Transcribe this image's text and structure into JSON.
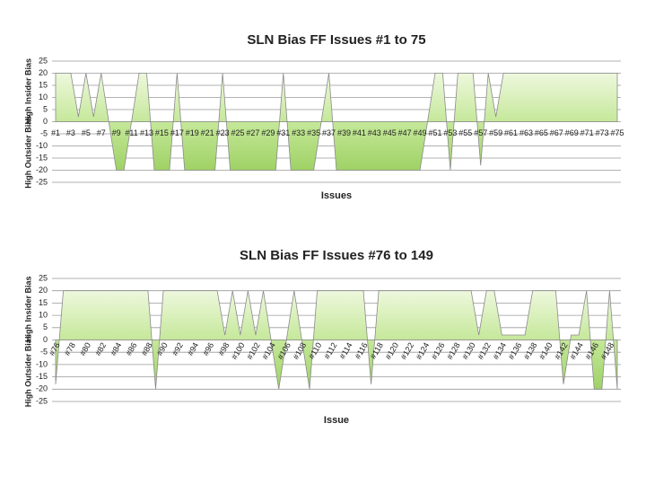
{
  "chart_data": [
    {
      "type": "area",
      "title": "SLN Bias FF Issues #1 to 75",
      "x_label": "Issues",
      "y_label_top": "High Insider Bias",
      "y_label_bottom": "High Outsider Bias",
      "categories": [
        "#1",
        null,
        "#3",
        null,
        "#5",
        null,
        "#7",
        null,
        "#9",
        null,
        "#11",
        null,
        "#13",
        null,
        "#15",
        null,
        "#17",
        null,
        "#19",
        null,
        "#21",
        null,
        "#23",
        null,
        "#25",
        null,
        "#27",
        null,
        "#29",
        null,
        "#31",
        null,
        "#33",
        null,
        "#35",
        null,
        "#37",
        null,
        "#39",
        null,
        "#41",
        null,
        "#43",
        null,
        "#45",
        null,
        "#47",
        null,
        "#49",
        null,
        "#51",
        null,
        "#53",
        null,
        "#55",
        null,
        "#57",
        null,
        "#59",
        null,
        "#61",
        null,
        "#63",
        null,
        "#65",
        null,
        "#67",
        null,
        "#69",
        null,
        "#71",
        null,
        "#73",
        null,
        "#75"
      ],
      "values": [
        20,
        20,
        20,
        2,
        20,
        2,
        20,
        0,
        -20,
        -20,
        0,
        20,
        20,
        -20,
        -20,
        -20,
        20,
        -20,
        -20,
        -20,
        -20,
        -20,
        20,
        -20,
        -20,
        -20,
        -20,
        -20,
        -20,
        -20,
        20,
        -20,
        -20,
        -20,
        -20,
        0,
        20,
        -20,
        -20,
        -20,
        -20,
        -20,
        -20,
        -20,
        -20,
        -20,
        -20,
        -20,
        -20,
        0,
        20,
        20,
        -20,
        20,
        20,
        20,
        -18,
        20,
        2,
        20,
        20,
        20,
        20,
        20,
        20,
        20,
        20,
        20,
        20,
        20,
        20,
        20,
        20,
        20,
        20
      ],
      "color": "#c5e89a",
      "ylim": [
        -25,
        25
      ],
      "yticks": [
        -25,
        -20,
        -15,
        -10,
        -5,
        0,
        5,
        10,
        15,
        20,
        25
      ],
      "grid": true
    },
    {
      "type": "area",
      "title": "SLN Bias FF Issues #76 to 149",
      "x_label": "Issue",
      "y_label_top": "High Insider Bias",
      "y_label_bottom": "High Outsider Bias",
      "categories": [
        "#76",
        null,
        "#78",
        null,
        "#80",
        null,
        "#82",
        null,
        "#84",
        null,
        "#86",
        null,
        "#88",
        null,
        "#90",
        null,
        "#92",
        null,
        "#94",
        null,
        "#96",
        null,
        "#98",
        null,
        "#100",
        null,
        "#102",
        null,
        "#104",
        null,
        "#106",
        null,
        "#108",
        null,
        "#110",
        null,
        "#112",
        null,
        "#114",
        null,
        "#116",
        null,
        "#118",
        null,
        "#120",
        null,
        "#122",
        null,
        "#124",
        null,
        "#126",
        null,
        "#128",
        null,
        "#130",
        null,
        "#132",
        null,
        "#134",
        null,
        "#136",
        null,
        "#138",
        null,
        "#140",
        null,
        "#142",
        null,
        "#144",
        null,
        "#146",
        null,
        "#148",
        null
      ],
      "values": [
        -18,
        20,
        20,
        20,
        20,
        20,
        20,
        20,
        20,
        20,
        20,
        20,
        20,
        -20,
        20,
        20,
        20,
        20,
        20,
        20,
        20,
        20,
        2,
        20,
        2,
        20,
        2,
        20,
        0,
        -20,
        0,
        20,
        0,
        -20,
        20,
        20,
        20,
        20,
        20,
        20,
        20,
        -18,
        20,
        20,
        20,
        20,
        20,
        20,
        20,
        20,
        20,
        20,
        20,
        20,
        20,
        2,
        20,
        20,
        2,
        2,
        2,
        2,
        20,
        20,
        20,
        20,
        -18,
        2,
        2,
        20,
        -20,
        -20,
        20,
        -20
      ],
      "color": "#c5e89a",
      "ylim": [
        -25,
        25
      ],
      "yticks": [
        -25,
        -20,
        -15,
        -10,
        -5,
        0,
        5,
        10,
        15,
        20,
        25
      ],
      "grid": true
    }
  ]
}
